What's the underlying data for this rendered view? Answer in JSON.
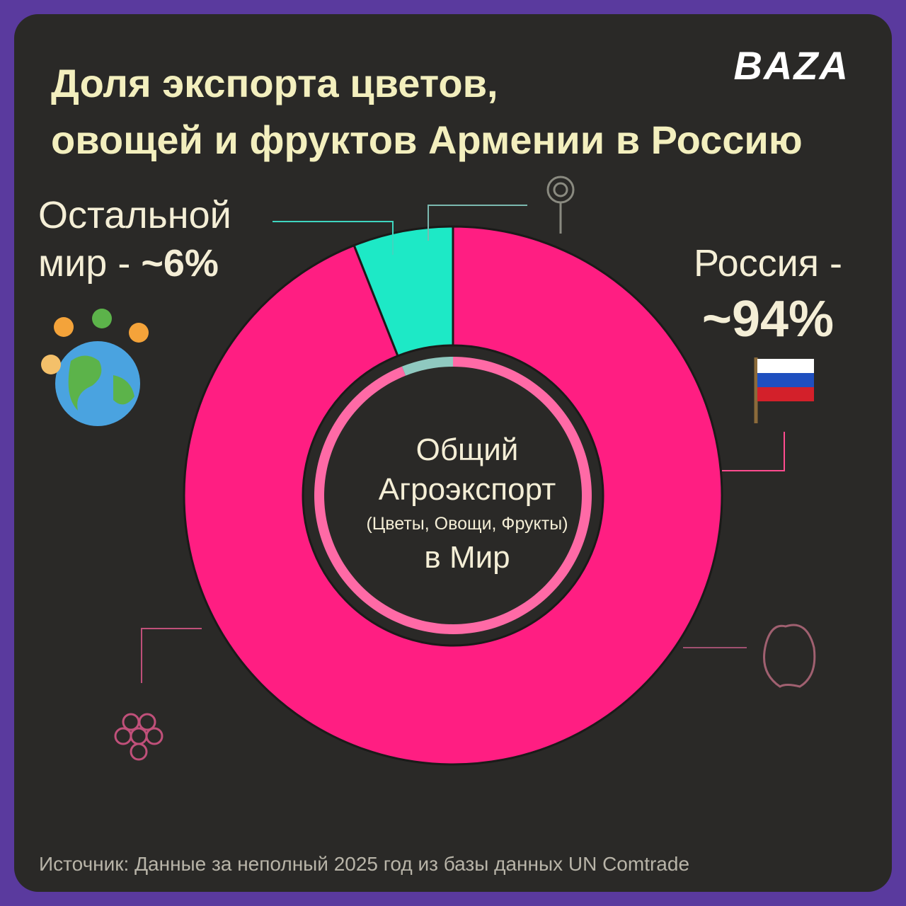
{
  "chart_data": {
    "type": "donut",
    "title": [
      "Доля экспорта цветов,",
      "овощей и фруктов Армении в Россию"
    ],
    "logo": "BAZA",
    "categories": [
      "Россия -",
      "Остальной мир -"
    ],
    "values": [
      94,
      6
    ],
    "value_labels": [
      "~94%",
      "~6%"
    ],
    "colors": [
      "#ff1e82",
      "#1de9c6"
    ],
    "center_label": [
      "Общий",
      "Агроэкспорт",
      "(Цветы, Овощи, Фрукты)",
      "в Мир"
    ],
    "source": "Источник: Данные за неполный 2025 год из базы данных UN Comtrade"
  }
}
